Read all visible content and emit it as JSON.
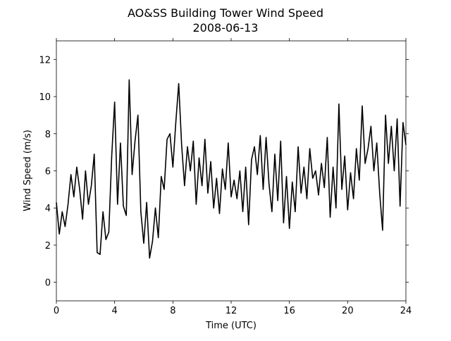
{
  "chart_data": {
    "type": "line",
    "title": "AO&SS Building Tower Wind Speed",
    "subtitle": "2008-06-13",
    "x_label": "Time (UTC)",
    "y_label": "Wind Speed (m/s)",
    "xlim": [
      0,
      24
    ],
    "xticks": [
      0,
      4,
      8,
      12,
      16,
      20,
      24
    ],
    "ylim": [
      -1,
      13
    ],
    "yticks": [
      0,
      2,
      4,
      6,
      8,
      10,
      12
    ],
    "grid": false,
    "x": [
      0,
      0.2,
      0.4,
      0.6,
      0.8,
      1,
      1.2,
      1.4,
      1.6,
      1.8,
      2,
      2.2,
      2.4,
      2.6,
      2.8,
      3,
      3.2,
      3.4,
      3.6,
      3.8,
      4,
      4.2,
      4.4,
      4.6,
      4.8,
      5,
      5.2,
      5.4,
      5.6,
      5.8,
      6,
      6.2,
      6.4,
      6.6,
      6.8,
      7,
      7.2,
      7.4,
      7.6,
      7.8,
      8,
      8.2,
      8.4,
      8.6,
      8.8,
      9,
      9.2,
      9.4,
      9.6,
      9.8,
      10,
      10.2,
      10.4,
      10.6,
      10.8,
      11,
      11.2,
      11.4,
      11.6,
      11.8,
      12,
      12.2,
      12.4,
      12.6,
      12.8,
      13,
      13.2,
      13.4,
      13.6,
      13.8,
      14,
      14.2,
      14.4,
      14.6,
      14.8,
      15,
      15.2,
      15.4,
      15.6,
      15.8,
      16,
      16.2,
      16.4,
      16.6,
      16.8,
      17,
      17.2,
      17.4,
      17.6,
      17.8,
      18,
      18.2,
      18.4,
      18.6,
      18.8,
      19,
      19.2,
      19.4,
      19.6,
      19.8,
      20,
      20.2,
      20.4,
      20.6,
      20.8,
      21,
      21.2,
      21.4,
      21.6,
      21.8,
      22,
      22.2,
      22.4,
      22.6,
      22.8,
      23,
      23.2,
      23.4,
      23.6,
      23.8,
      24
    ],
    "series": [
      {
        "name": "Wind Speed",
        "color": "#000000",
        "values": [
          4.3,
          2.6,
          3.8,
          3.0,
          4.2,
          5.8,
          4.6,
          6.2,
          5.0,
          3.4,
          6.0,
          4.2,
          5.2,
          6.9,
          1.6,
          1.5,
          3.8,
          2.3,
          2.7,
          6.8,
          9.7,
          4.2,
          7.5,
          4.1,
          3.6,
          10.9,
          5.8,
          7.6,
          9.0,
          3.8,
          2.1,
          4.3,
          1.3,
          2.2,
          4.0,
          2.4,
          5.7,
          5.0,
          7.7,
          8.0,
          6.2,
          8.6,
          10.7,
          7.4,
          5.2,
          7.3,
          6.0,
          7.6,
          4.2,
          6.7,
          5.2,
          7.7,
          4.8,
          6.5,
          4.0,
          5.6,
          3.7,
          6.1,
          5.0,
          7.5,
          4.6,
          5.5,
          4.5,
          6.0,
          3.8,
          6.2,
          3.1,
          6.6,
          7.3,
          5.8,
          7.9,
          5.0,
          7.8,
          5.3,
          3.8,
          6.9,
          4.4,
          7.6,
          3.2,
          5.7,
          2.9,
          5.4,
          3.8,
          7.3,
          4.8,
          6.2,
          4.5,
          7.2,
          5.6,
          6.0,
          4.7,
          6.4,
          5.1,
          7.8,
          3.5,
          6.2,
          4.0,
          9.6,
          5.0,
          6.8,
          3.9,
          5.9,
          4.5,
          7.2,
          5.5,
          9.5,
          6.4,
          7.2,
          8.4,
          6.0,
          7.5,
          4.8,
          2.8,
          9.0,
          6.4,
          8.4,
          6.0,
          8.8,
          4.1,
          8.6,
          7.4
        ]
      }
    ]
  }
}
